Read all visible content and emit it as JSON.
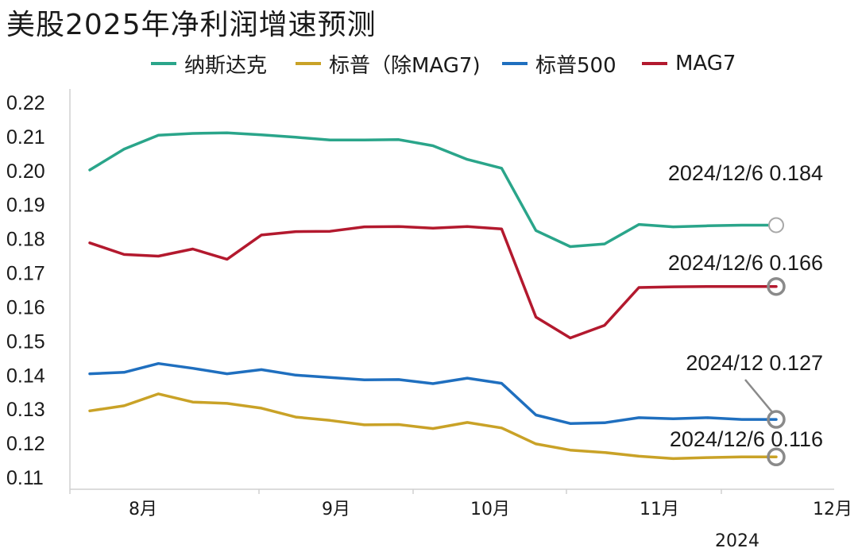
{
  "chart_data": {
    "type": "line",
    "title": "美股2025年净利润增速预测",
    "ylim": [
      0.11,
      0.22
    ],
    "yticks": [
      "0.22",
      "0.21",
      "0.20",
      "0.19",
      "0.18",
      "0.17",
      "0.16",
      "0.15",
      "0.14",
      "0.13",
      "0.12",
      "0.11"
    ],
    "ytick_values": [
      0.22,
      0.21,
      0.2,
      0.19,
      0.18,
      0.17,
      0.16,
      0.15,
      0.14,
      0.13,
      0.12,
      0.11
    ],
    "xticks": [
      "8月",
      "9月",
      "10月",
      "11月",
      "12月"
    ],
    "year_label": "2024",
    "x": [
      "2024/7/19",
      "2024/7/26",
      "2024/8/2",
      "2024/8/9",
      "2024/8/16",
      "2024/8/23",
      "2024/8/30",
      "2024/9/6",
      "2024/9/13",
      "2024/9/20",
      "2024/9/27",
      "2024/10/4",
      "2024/10/11",
      "2024/10/18",
      "2024/10/25",
      "2024/11/1",
      "2024/11/8",
      "2024/11/15",
      "2024/11/22",
      "2024/11/29",
      "2024/12/6"
    ],
    "series": [
      {
        "name": "纳斯达克",
        "color": "#2aa58a",
        "values": [
          0.2002,
          0.2063,
          0.2104,
          0.2109,
          0.2111,
          0.2105,
          0.2098,
          0.209,
          0.209,
          0.2091,
          0.2073,
          0.2033,
          0.2007,
          0.1824,
          0.1777,
          0.1785,
          0.1842,
          0.1835,
          0.1838,
          0.184,
          0.184
        ]
      },
      {
        "name": "标普（除MAG7)",
        "color": "#c9a227",
        "values": [
          0.1295,
          0.131,
          0.1345,
          0.1321,
          0.1317,
          0.1303,
          0.1277,
          0.1267,
          0.1254,
          0.1255,
          0.1243,
          0.1261,
          0.1245,
          0.1198,
          0.118,
          0.1173,
          0.1162,
          0.1155,
          0.1158,
          0.116,
          0.116
        ]
      },
      {
        "name": "标普500",
        "color": "#1f6fbf",
        "values": [
          0.1404,
          0.1408,
          0.1434,
          0.142,
          0.1404,
          0.1416,
          0.14,
          0.1393,
          0.1386,
          0.1387,
          0.1375,
          0.1391,
          0.1376,
          0.1283,
          0.1258,
          0.126,
          0.1275,
          0.1272,
          0.1275,
          0.127,
          0.127
        ]
      },
      {
        "name": "MAG7",
        "color": "#b3192e",
        "values": [
          0.1788,
          0.1754,
          0.1749,
          0.177,
          0.174,
          0.1811,
          0.1821,
          0.1822,
          0.1835,
          0.1836,
          0.1831,
          0.1836,
          0.1829,
          0.157,
          0.1509,
          0.1546,
          0.1657,
          0.1659,
          0.166,
          0.166,
          0.166
        ]
      }
    ],
    "annotations": [
      {
        "text": "2024/12/6 0.184",
        "series": 0
      },
      {
        "text": "2024/12/6 0.166",
        "series": 3
      },
      {
        "text": "2024/12 0.127",
        "series": 2
      },
      {
        "text": "2024/12/6 0.116",
        "series": 1
      }
    ],
    "grid": false,
    "legend_position": "top"
  }
}
